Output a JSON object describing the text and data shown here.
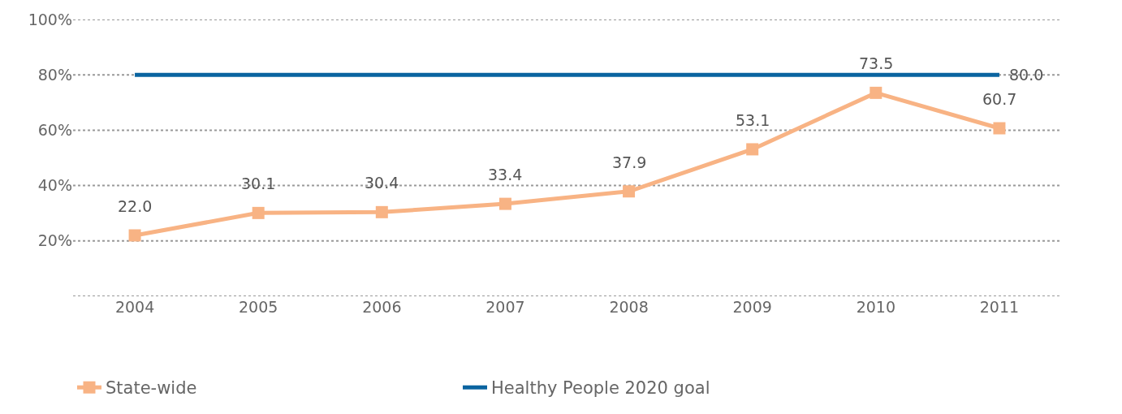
{
  "chart_data": {
    "type": "line",
    "categories": [
      "2004",
      "2005",
      "2006",
      "2007",
      "2008",
      "2009",
      "2010",
      "2011"
    ],
    "series": [
      {
        "name": "State-wide",
        "color": "#f8b384",
        "values": [
          22.0,
          30.1,
          30.4,
          33.4,
          37.9,
          53.1,
          73.5,
          60.7
        ],
        "marker": "square",
        "value_labels": [
          "22.0",
          "30.1",
          "30.4",
          "33.4",
          "37.9",
          "53.1",
          "73.5",
          "60.7"
        ]
      },
      {
        "name": "Healthy People 2020 goal",
        "color": "#0a64a0",
        "values": [
          80.0,
          80.0,
          80.0,
          80.0,
          80.0,
          80.0,
          80.0,
          80.0
        ],
        "marker": "none",
        "value_labels": [
          null,
          null,
          null,
          null,
          null,
          null,
          null,
          "80.0"
        ]
      }
    ],
    "ylim": [
      0,
      100
    ],
    "yticks": [
      {
        "value": 0,
        "label": null
      },
      {
        "value": 20,
        "label": "20%"
      },
      {
        "value": 40,
        "label": "40%"
      },
      {
        "value": 60,
        "label": "60%"
      },
      {
        "value": 80,
        "label": "80%"
      },
      {
        "value": 100,
        "label": "100%"
      }
    ],
    "grid": "y",
    "legend": "bottom",
    "line_style": "solid"
  }
}
